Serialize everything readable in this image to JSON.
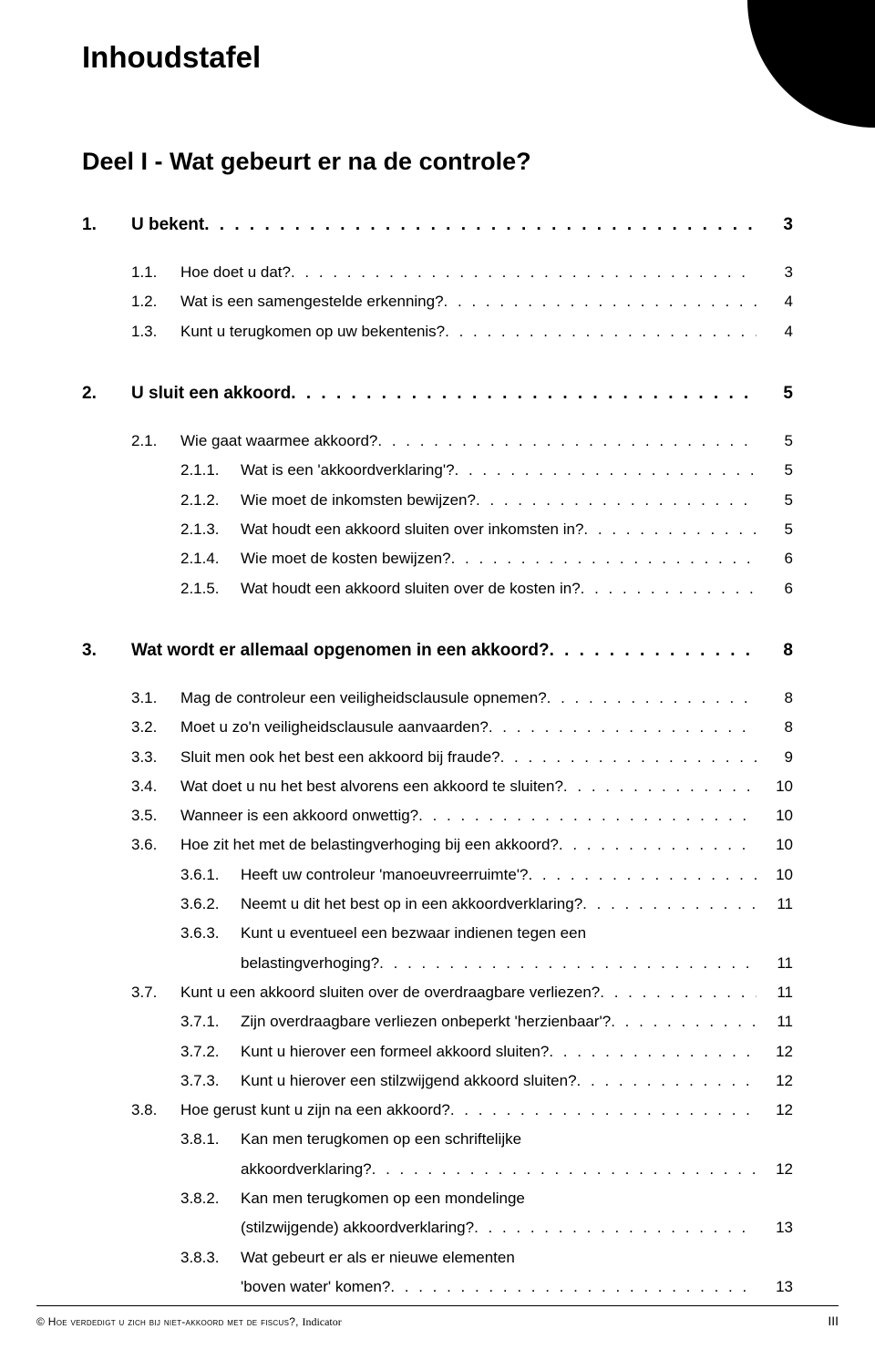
{
  "page_title": "Inhoudstafel",
  "part_title": "Deel I - Wat gebeurt er na de controle?",
  "sections": [
    {
      "num": "1.",
      "label": "U bekent",
      "page": "3",
      "items": [
        {
          "num": "1.1.",
          "label": "Hoe doet u dat?",
          "page": "3"
        },
        {
          "num": "1.2.",
          "label": "Wat is een samengestelde erkenning?",
          "page": "4"
        },
        {
          "num": "1.3.",
          "label": "Kunt u terugkomen op uw bekentenis?",
          "page": "4"
        }
      ]
    },
    {
      "num": "2.",
      "label": "U sluit een akkoord",
      "page": "5",
      "items": [
        {
          "num": "2.1.",
          "label": "Wie gaat waarmee akkoord?",
          "page": "5",
          "subitems": [
            {
              "num": "2.1.1.",
              "label": "Wat is een 'akkoordverklaring'?",
              "page": "5"
            },
            {
              "num": "2.1.2.",
              "label": "Wie moet de inkomsten bewijzen?",
              "page": "5"
            },
            {
              "num": "2.1.3.",
              "label": "Wat houdt een akkoord sluiten over inkomsten in?",
              "page": "5"
            },
            {
              "num": "2.1.4.",
              "label": "Wie moet de kosten bewijzen?",
              "page": "6"
            },
            {
              "num": "2.1.5.",
              "label": "Wat houdt een akkoord sluiten over de kosten in?",
              "page": "6"
            }
          ]
        }
      ]
    },
    {
      "num": "3.",
      "label": "Wat wordt er allemaal opgenomen in een akkoord?",
      "page": "8",
      "items": [
        {
          "num": "3.1.",
          "label": "Mag de controleur een veiligheidsclausule opnemen?",
          "page": "8"
        },
        {
          "num": "3.2.",
          "label": "Moet u zo'n veiligheidsclausule aanvaarden?",
          "page": "8"
        },
        {
          "num": "3.3.",
          "label": "Sluit men ook het best een akkoord bij fraude?",
          "page": "9"
        },
        {
          "num": "3.4.",
          "label": "Wat doet u nu het best alvorens een akkoord te sluiten?",
          "page": "10"
        },
        {
          "num": "3.5.",
          "label": "Wanneer is een akkoord onwettig?",
          "page": "10"
        },
        {
          "num": "3.6.",
          "label": "Hoe zit het met de belastingverhoging bij een akkoord?",
          "page": "10",
          "subitems": [
            {
              "num": "3.6.1.",
              "label": "Heeft uw controleur 'manoeuvreerruimte'?",
              "page": "10"
            },
            {
              "num": "3.6.2.",
              "label": "Neemt u dit het best op in een akkoordverklaring?",
              "page": "11"
            },
            {
              "num": "3.6.3.",
              "label": "Kunt u eventueel een bezwaar indienen tegen een",
              "label2": "belastingverhoging?",
              "page": "11"
            }
          ]
        },
        {
          "num": "3.7.",
          "label": "Kunt u een akkoord sluiten over de overdraagbare verliezen?",
          "page": "11",
          "subitems": [
            {
              "num": "3.7.1.",
              "label": "Zijn overdraagbare verliezen onbeperkt 'herzienbaar'?",
              "page": "11"
            },
            {
              "num": "3.7.2.",
              "label": "Kunt u hierover een formeel akkoord sluiten?",
              "page": "12"
            },
            {
              "num": "3.7.3.",
              "label": "Kunt u hierover een stilzwijgend akkoord sluiten?",
              "page": "12"
            }
          ]
        },
        {
          "num": "3.8.",
          "label": "Hoe gerust kunt u zijn na een akkoord?",
          "page": "12",
          "subitems": [
            {
              "num": "3.8.1.",
              "label": "Kan men terugkomen op een schriftelijke",
              "label2": "akkoordverklaring?",
              "page": "12"
            },
            {
              "num": "3.8.2.",
              "label": "Kan men terugkomen op een mondelinge",
              "label2": "(stilzwijgende) akkoordverklaring?",
              "page": "13"
            },
            {
              "num": "3.8.3.",
              "label": "Wat gebeurt er als er nieuwe elementen",
              "label2": "'boven water' komen?",
              "page": "13"
            }
          ]
        }
      ]
    }
  ],
  "footer_left": "© Hoe verdedigt u zich bij niet-akkoord met de fiscus?, ",
  "footer_publisher": "Indicator",
  "footer_right": "III"
}
